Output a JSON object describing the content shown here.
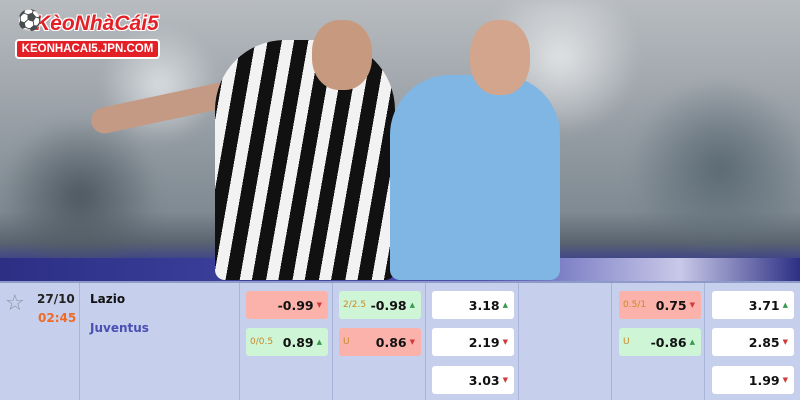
{
  "logo": {
    "title": "KèoNhàCái5",
    "url": "KEONHACAI5.JPN.COM"
  },
  "match": {
    "date": "27/10",
    "time": "02:45",
    "home": "Lazio",
    "away": "Juventus"
  },
  "odds": [
    {
      "line": "",
      "value": "-0.99",
      "trend": "down",
      "color": "red"
    },
    {
      "line": "0/0.5",
      "value": "0.89",
      "trend": "up",
      "color": "green"
    },
    {
      "line": "2/2.5",
      "value": "-0.98",
      "trend": "up",
      "color": "green"
    },
    {
      "line": "U",
      "value": "0.86",
      "trend": "down",
      "color": "red"
    },
    {
      "line": "",
      "value": "3.18",
      "trend": "up",
      "color": "white"
    },
    {
      "line": "",
      "value": "2.19",
      "trend": "down",
      "color": "white"
    },
    {
      "line": "",
      "value": "3.03",
      "trend": "down",
      "color": "white"
    },
    {
      "line": "0.5/1",
      "value": "0.75",
      "trend": "down",
      "color": "red"
    },
    {
      "line": "U",
      "value": "-0.86",
      "trend": "up",
      "color": "green"
    },
    {
      "line": "",
      "value": "3.71",
      "trend": "up",
      "color": "white"
    },
    {
      "line": "",
      "value": "2.85",
      "trend": "down",
      "color": "white"
    },
    {
      "line": "",
      "value": "1.99",
      "trend": "down",
      "color": "white"
    }
  ],
  "icons": {
    "star": "☆",
    "up": "▲",
    "down": "▼"
  }
}
